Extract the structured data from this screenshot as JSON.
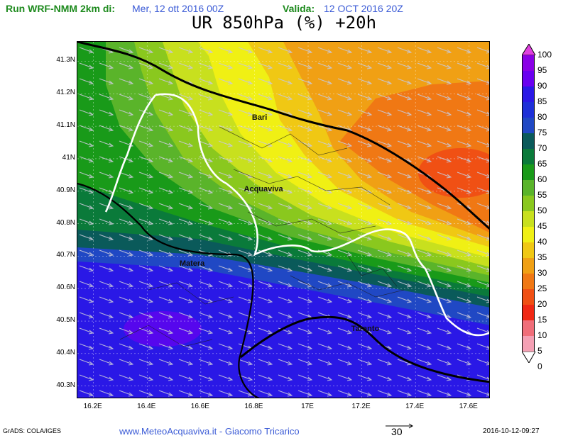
{
  "header": {
    "run_label": "Run WRF-NMM 2km di:",
    "run_date": "Mer, 12 ott 2016 00Z",
    "valid_label": "Valida:",
    "valid_date": "12 OCT 2016 20Z"
  },
  "title": "UR 850hPa (%) +20h",
  "map": {
    "lat_ticks": [
      "41.3N",
      "41.2N",
      "41.1N",
      "41N",
      "40.9N",
      "40.8N",
      "40.7N",
      "40.6N",
      "40.5N",
      "40.4N",
      "40.3N"
    ],
    "lon_ticks": [
      "16.2E",
      "16.4E",
      "16.6E",
      "16.8E",
      "17E",
      "17.2E",
      "17.4E",
      "17.6E"
    ],
    "places": [
      {
        "name": "Bari",
        "lon": 16.87,
        "lat": 41.12
      },
      {
        "name": "Acquaviva",
        "lon": 16.84,
        "lat": 40.9
      },
      {
        "name": "Matera",
        "lon": 16.6,
        "lat": 40.67
      },
      {
        "name": "Taranto",
        "lon": 17.24,
        "lat": 40.47
      }
    ],
    "extent": {
      "lon": [
        16.14,
        17.68
      ],
      "lat": [
        40.26,
        41.36
      ]
    }
  },
  "legend": {
    "levels": [
      "100",
      "95",
      "90",
      "85",
      "80",
      "75",
      "70",
      "65",
      "60",
      "55",
      "50",
      "45",
      "40",
      "35",
      "30",
      "25",
      "20",
      "15",
      "10",
      "5",
      "0"
    ],
    "colors": [
      "#a800d8",
      "#8a00e6",
      "#6a00f0",
      "#2a18e6",
      "#1e30d8",
      "#2048c4",
      "#0a5a5a",
      "#0a7a3a",
      "#199a19",
      "#5ab42a",
      "#8ac81e",
      "#c8e01e",
      "#f0f014",
      "#f0c814",
      "#f0a014",
      "#f07814",
      "#f05014",
      "#f02814",
      "#f06e7a",
      "#f4a0b4",
      "#fcd8e0"
    ]
  },
  "footer": {
    "grads": "GrADS: COLA/IGES",
    "site": "www.MeteoAcquaviva.it - Giacomo Tricarico",
    "wind_ref": "30",
    "timestamp": "2016-10-12-09:27"
  }
}
